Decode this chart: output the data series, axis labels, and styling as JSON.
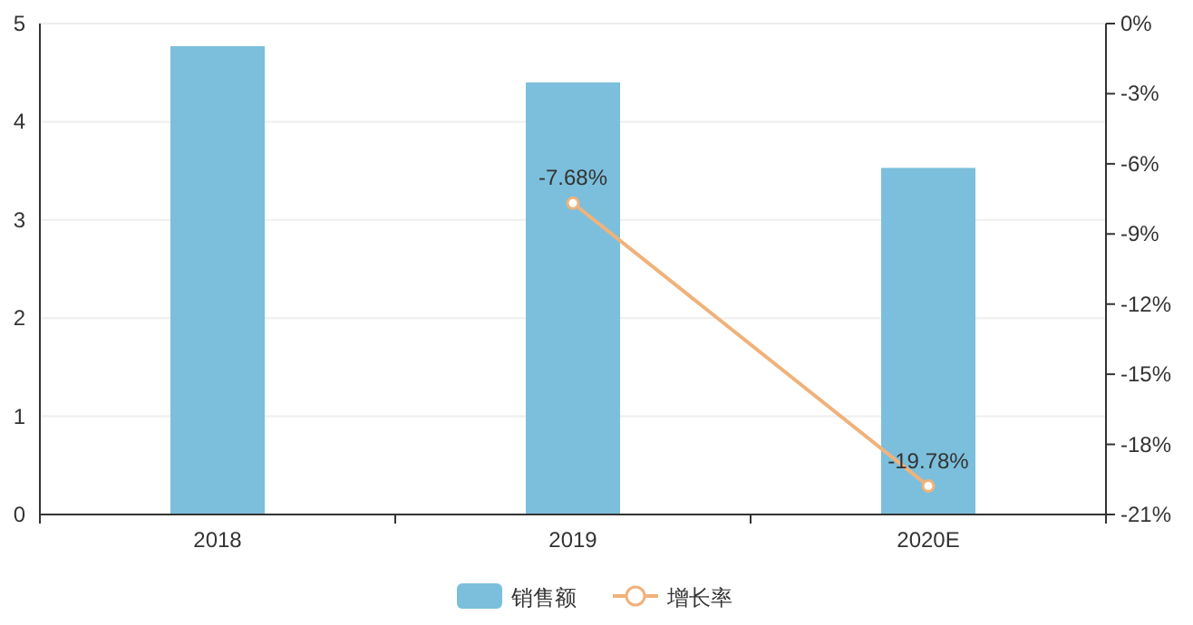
{
  "chart_data": {
    "type": "bar",
    "categories": [
      "2018",
      "2019",
      "2020E"
    ],
    "series": [
      {
        "name": "销售额",
        "color": "#7bbfdc",
        "values": [
          4.77,
          4.4,
          3.53
        ]
      },
      {
        "name": "增长率",
        "type": "line",
        "axis": "y2",
        "color": "#f0b27a",
        "marker": "circle",
        "values": [
          null,
          -7.68,
          -19.78
        ],
        "value_labels": [
          null,
          "-7.68%",
          "-19.78%"
        ]
      }
    ],
    "ylim": [
      0,
      5
    ],
    "yticks": [
      0,
      1,
      2,
      3,
      4,
      5
    ],
    "y2lim": [
      -21,
      0
    ],
    "y2ticks": [
      {
        "value": 0,
        "label": "0%"
      },
      {
        "value": -3,
        "label": "-3%"
      },
      {
        "value": -6,
        "label": "-6%"
      },
      {
        "value": -9,
        "label": "-9%"
      },
      {
        "value": -12,
        "label": "-12%"
      },
      {
        "value": -15,
        "label": "-15%"
      },
      {
        "value": -18,
        "label": "-18%"
      },
      {
        "value": -21,
        "label": "-21%"
      }
    ],
    "grid": "y",
    "legend": "bottom"
  }
}
